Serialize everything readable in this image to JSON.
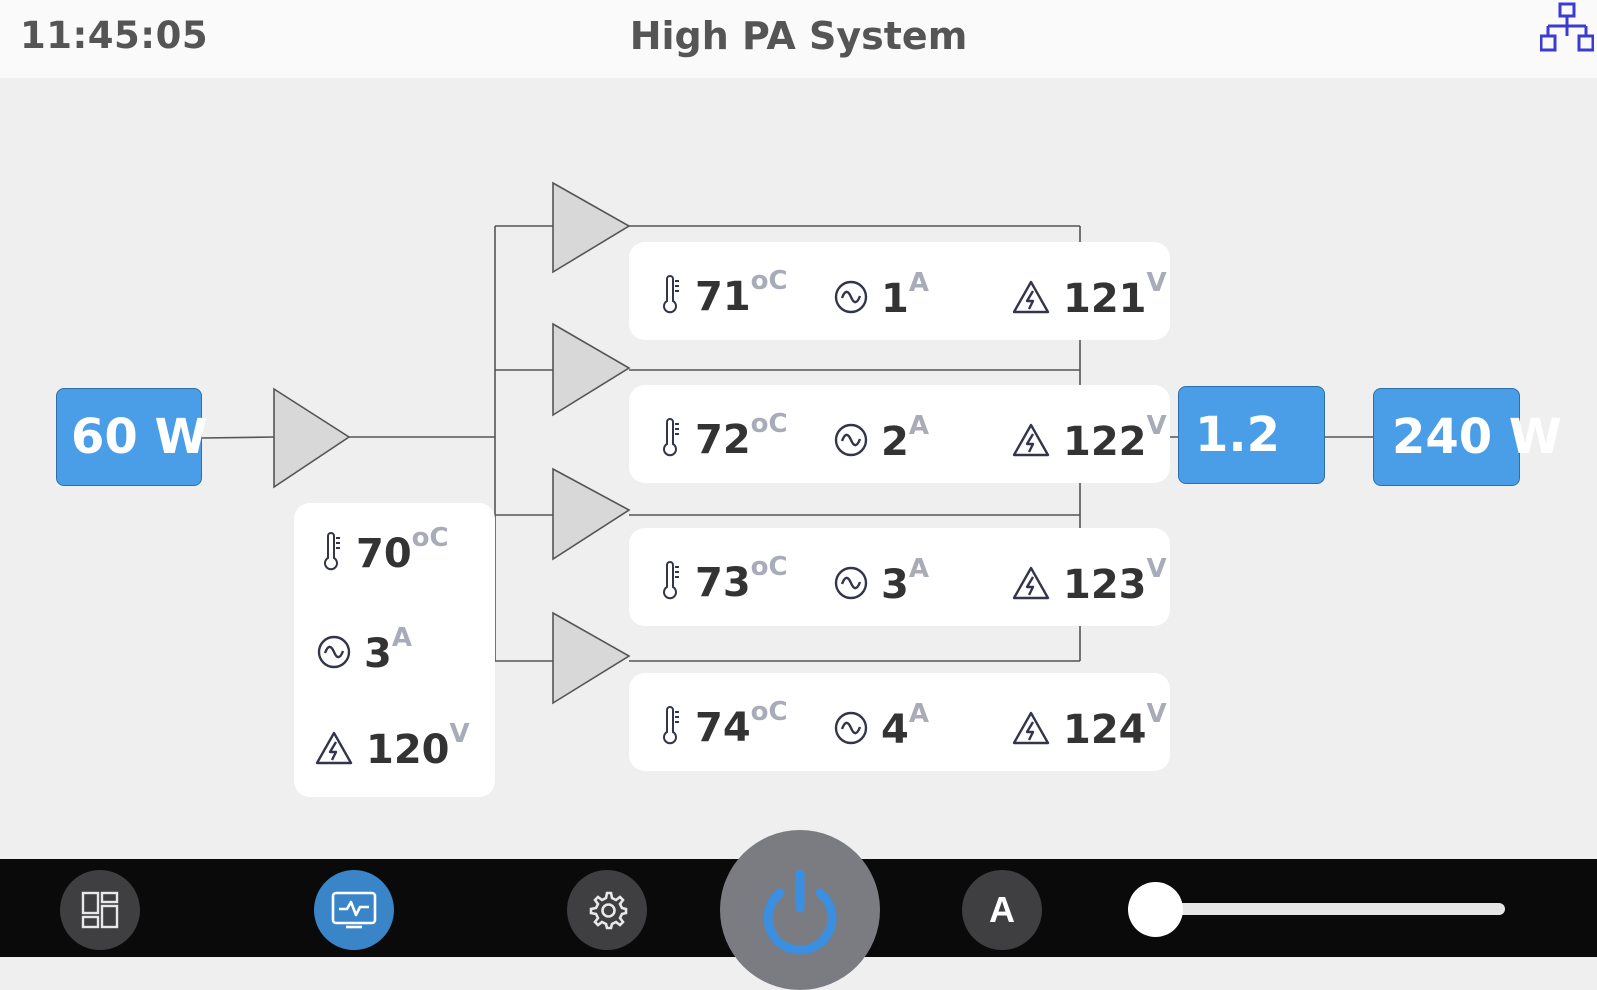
{
  "header": {
    "clock": "11:45:05",
    "title": "High PA System",
    "network_icon": "network-topology-icon"
  },
  "system": {
    "input_power": "60 W",
    "gain": "1.2",
    "output_power": "240 W"
  },
  "driver": {
    "temperature": {
      "value": "70",
      "unit": "oC"
    },
    "current": {
      "value": "3",
      "unit": "A"
    },
    "voltage": {
      "value": "120",
      "unit": "V"
    }
  },
  "amplifiers": [
    {
      "temperature": {
        "value": "71",
        "unit": "oC"
      },
      "current": {
        "value": "1",
        "unit": "A"
      },
      "voltage": {
        "value": "121",
        "unit": "V"
      }
    },
    {
      "temperature": {
        "value": "72",
        "unit": "oC"
      },
      "current": {
        "value": "2",
        "unit": "A"
      },
      "voltage": {
        "value": "122",
        "unit": "V"
      }
    },
    {
      "temperature": {
        "value": "73",
        "unit": "oC"
      },
      "current": {
        "value": "3",
        "unit": "A"
      },
      "voltage": {
        "value": "123",
        "unit": "V"
      }
    },
    {
      "temperature": {
        "value": "74",
        "unit": "oC"
      },
      "current": {
        "value": "4",
        "unit": "A"
      },
      "voltage": {
        "value": "124",
        "unit": "V"
      }
    }
  ],
  "footer": {
    "buttons": [
      "dashboard-icon",
      "monitor-icon",
      "settings-icon",
      "power-icon"
    ],
    "auto_label": "A",
    "slider_value": 0
  },
  "colors": {
    "accent": "#4a9ee8",
    "active": "#3a85c8",
    "footer_bg": "#0a0a0a",
    "unit": "#a8abb8"
  }
}
